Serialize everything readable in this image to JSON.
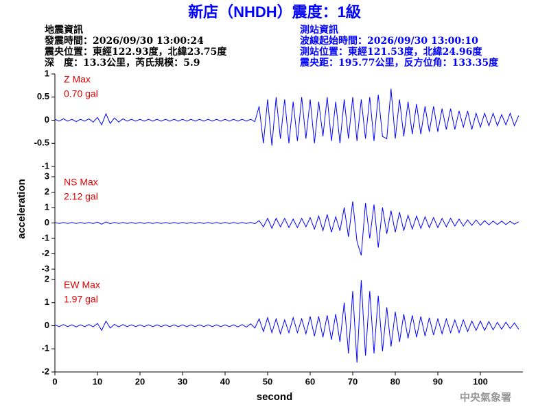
{
  "title": "新店（NHDH）震度：1級",
  "info": {
    "left": [
      "地震資訊",
      "發震時間：2026/09/30 13:00:24",
      "震央位置：東經122.93度，北緯23.75度",
      "深　度：13.3公里，芮氏規模：5.9"
    ],
    "right": [
      "測站資訊",
      "波線起始時間：2026/09/30 13:00:10",
      "測站位置：東經121.53度，北緯24.96度",
      "震央距：195.77公里，反方位角：133.35度"
    ]
  },
  "footer": "中央氣象署",
  "chart_data": {
    "type": "line",
    "xlabel": "second",
    "ylabel": "acceleration",
    "xlim": [
      0,
      110
    ],
    "xticks": [
      0,
      10,
      20,
      30,
      40,
      50,
      60,
      70,
      80,
      90,
      100
    ],
    "x": [
      0,
      1,
      2,
      3,
      4,
      5,
      6,
      7,
      8,
      9,
      10,
      11,
      12,
      13,
      14,
      15,
      16,
      17,
      18,
      19,
      20,
      21,
      22,
      23,
      24,
      25,
      26,
      27,
      28,
      29,
      30,
      31,
      32,
      33,
      34,
      35,
      36,
      37,
      38,
      39,
      40,
      41,
      42,
      43,
      44,
      45,
      46,
      47,
      48,
      49,
      50,
      51,
      52,
      53,
      54,
      55,
      56,
      57,
      58,
      59,
      60,
      61,
      62,
      63,
      64,
      65,
      66,
      67,
      68,
      69,
      70,
      71,
      72,
      73,
      74,
      75,
      76,
      77,
      78,
      79,
      80,
      81,
      82,
      83,
      84,
      85,
      86,
      87,
      88,
      89,
      90,
      91,
      92,
      93,
      94,
      95,
      96,
      97,
      98,
      99,
      100,
      101,
      102,
      103,
      104,
      105,
      106,
      107,
      108,
      109
    ],
    "series": [
      {
        "name": "Z Max",
        "annotation": "0.70 gal",
        "color": "#0000ff",
        "ylim": [
          -1,
          1
        ],
        "yticks": [
          -1,
          -0.5,
          0,
          0.5,
          1
        ],
        "values": [
          0.02,
          -0.02,
          0.03,
          -0.02,
          0.02,
          -0.03,
          0.02,
          -0.02,
          0.03,
          -0.04,
          0.06,
          -0.1,
          0.14,
          -0.07,
          0.05,
          -0.04,
          0.03,
          -0.02,
          0.02,
          -0.02,
          0.02,
          -0.02,
          0.02,
          -0.02,
          0.02,
          -0.02,
          0.02,
          -0.02,
          0.02,
          -0.02,
          0.02,
          -0.02,
          0.02,
          -0.02,
          0.02,
          -0.02,
          0.02,
          -0.02,
          0.02,
          -0.02,
          0.02,
          -0.02,
          0.02,
          -0.02,
          0.02,
          -0.02,
          0.02,
          -0.03,
          0.3,
          -0.5,
          0.45,
          -0.55,
          0.5,
          -0.4,
          0.45,
          -0.5,
          0.4,
          -0.45,
          0.5,
          -0.4,
          0.45,
          -0.5,
          0.4,
          -0.35,
          0.5,
          -0.45,
          0.4,
          -0.5,
          0.45,
          -0.4,
          0.5,
          -0.45,
          0.45,
          -0.4,
          0.5,
          -0.45,
          0.55,
          -0.35,
          -0.4,
          0.68,
          -0.4,
          0.45,
          -0.35,
          0.4,
          -0.3,
          0.35,
          -0.3,
          0.3,
          -0.25,
          0.3,
          -0.25,
          0.25,
          -0.2,
          0.25,
          -0.2,
          0.2,
          -0.15,
          0.2,
          -0.2,
          0.15,
          -0.15,
          0.15,
          -0.12,
          0.15,
          -0.12,
          0.12,
          -0.1,
          0.15,
          -0.12,
          0.1
        ]
      },
      {
        "name": "NS Max",
        "annotation": "2.12 gal",
        "color": "#0000ff",
        "ylim": [
          -3,
          3
        ],
        "yticks": [
          -3,
          -2,
          -1,
          0,
          1,
          2,
          3
        ],
        "values": [
          0.03,
          -0.03,
          0.03,
          -0.03,
          0.03,
          -0.03,
          0.03,
          -0.03,
          0.03,
          -0.04,
          0.06,
          -0.08,
          0.07,
          -0.05,
          0.04,
          -0.03,
          0.03,
          -0.03,
          0.03,
          -0.03,
          0.03,
          -0.03,
          0.03,
          -0.03,
          0.03,
          -0.03,
          0.03,
          -0.03,
          0.03,
          -0.03,
          0.03,
          -0.03,
          0.03,
          -0.03,
          0.03,
          -0.03,
          0.03,
          -0.03,
          0.03,
          -0.03,
          0.03,
          -0.03,
          0.03,
          -0.03,
          0.03,
          -0.03,
          0.04,
          -0.05,
          0.15,
          -0.25,
          0.3,
          -0.35,
          0.3,
          -0.25,
          0.3,
          -0.3,
          0.25,
          -0.3,
          0.3,
          -0.25,
          0.35,
          -0.4,
          0.45,
          -0.5,
          0.55,
          -0.6,
          0.4,
          -0.5,
          1.0,
          -0.9,
          1.4,
          -1.2,
          -2.1,
          1.3,
          -1.0,
          1.2,
          -1.6,
          1.0,
          -0.7,
          0.8,
          -0.6,
          0.7,
          -0.5,
          0.5,
          -0.4,
          0.45,
          -0.35,
          0.4,
          -0.3,
          0.35,
          -0.3,
          0.3,
          -0.25,
          0.3,
          -0.2,
          0.25,
          -0.2,
          0.2,
          -0.15,
          0.2,
          -0.15,
          0.15,
          -0.12,
          0.12,
          -0.1,
          0.12,
          -0.1,
          0.1,
          -0.08,
          0.08
        ]
      },
      {
        "name": "EW Max",
        "annotation": "1.97 gal",
        "color": "#0000ff",
        "ylim": [
          -2,
          2
        ],
        "yticks": [
          -2,
          -1,
          0,
          1,
          2
        ],
        "values": [
          0.04,
          -0.04,
          0.05,
          -0.04,
          0.04,
          -0.05,
          0.04,
          -0.04,
          0.05,
          -0.05,
          0.1,
          -0.2,
          0.2,
          -0.1,
          0.06,
          -0.05,
          0.05,
          -0.04,
          0.04,
          -0.04,
          0.04,
          -0.04,
          0.04,
          -0.04,
          0.04,
          -0.04,
          0.04,
          -0.04,
          0.04,
          -0.04,
          0.04,
          -0.04,
          0.04,
          -0.04,
          0.04,
          -0.04,
          0.04,
          -0.04,
          0.04,
          -0.04,
          0.04,
          -0.04,
          0.04,
          -0.05,
          0.05,
          -0.06,
          0.08,
          -0.1,
          0.3,
          -0.25,
          0.35,
          -0.3,
          0.3,
          -0.35,
          0.25,
          -0.3,
          0.35,
          -0.3,
          0.3,
          -0.35,
          0.4,
          -0.45,
          0.4,
          -0.5,
          0.45,
          -0.6,
          0.5,
          -0.7,
          1.0,
          -1.2,
          1.5,
          -1.6,
          1.97,
          -1.3,
          1.5,
          -1.2,
          1.3,
          -1.1,
          0.8,
          -0.9,
          0.6,
          -0.7,
          0.5,
          -0.55,
          0.45,
          -0.5,
          0.4,
          -0.45,
          0.35,
          -0.4,
          0.3,
          -0.35,
          0.3,
          -0.3,
          0.25,
          -0.3,
          0.25,
          -0.25,
          0.2,
          -0.2,
          0.2,
          -0.2,
          0.18,
          -0.18,
          0.15,
          -0.15,
          0.15,
          -0.12,
          0.12,
          -0.15
        ]
      }
    ]
  }
}
